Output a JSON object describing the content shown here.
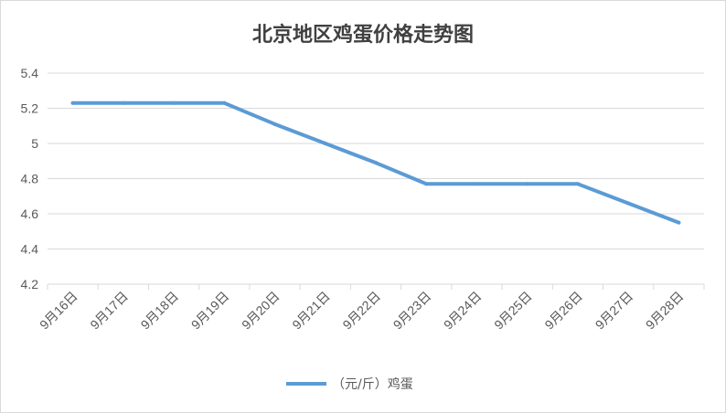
{
  "chart_data": {
    "type": "line",
    "title": "北京地区鸡蛋价格走势图",
    "xlabel": "",
    "ylabel": "",
    "categories": [
      "9月16日",
      "9月17日",
      "9月18日",
      "9月19日",
      "9月20日",
      "9月21日",
      "9月22日",
      "9月23日",
      "9月24日",
      "9月25日",
      "9月26日",
      "9月27日",
      "9月28日"
    ],
    "series": [
      {
        "name": "（元/斤）鸡蛋",
        "values": [
          5.23,
          5.23,
          5.23,
          5.23,
          5.11,
          5.0,
          4.89,
          4.77,
          4.77,
          4.77,
          4.77,
          4.66,
          4.55
        ],
        "color": "#5b9bd5"
      }
    ],
    "ylim": [
      4.2,
      5.4
    ],
    "yticks": [
      "4.2",
      "4.4",
      "4.6",
      "4.8",
      "5",
      "5.2",
      "5.4"
    ],
    "grid": true,
    "legend": "bottom",
    "colors": {
      "grid": "#d9d9d9",
      "text": "#595959",
      "title": "#404040"
    }
  }
}
